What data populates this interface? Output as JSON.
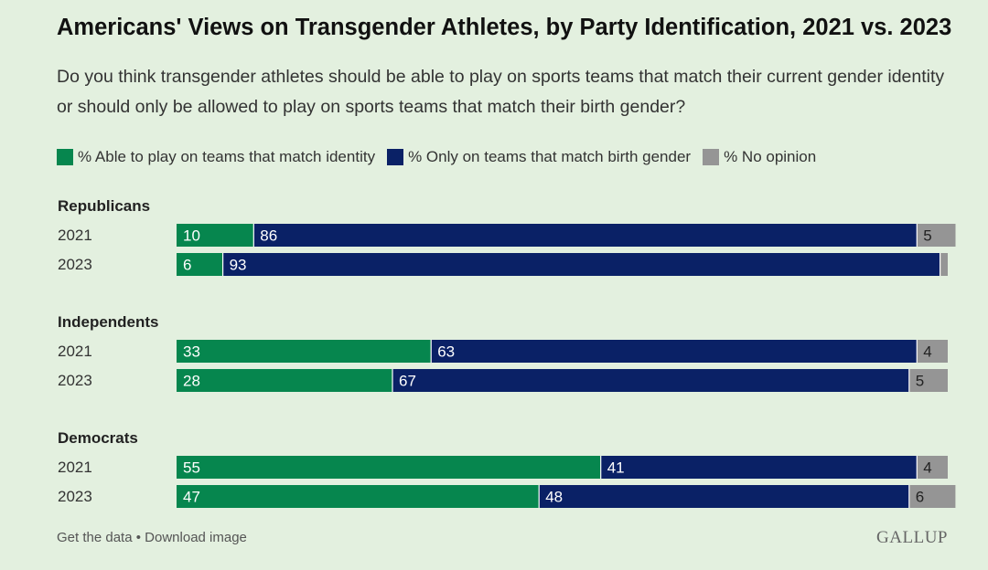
{
  "title": "Americans' Views on Transgender Athletes, by Party Identification, 2021 vs. 2023",
  "subtitle": "Do you think transgender athletes should be able to play on sports teams that match their current gender identity or should only be allowed to play on sports teams that match their birth gender?",
  "colors": {
    "identity": "#06864e",
    "birth": "#0a2166",
    "no_opinion": "#959595",
    "background": "#e3f0df"
  },
  "footer": {
    "get_data": "Get the data",
    "separator": "•",
    "download": "Download image"
  },
  "brand": "GALLUP",
  "chart_data": {
    "type": "bar",
    "stacked": true,
    "orientation": "horizontal",
    "legend": {
      "position": "top"
    },
    "xlim": [
      0,
      100
    ],
    "series": [
      {
        "key": "identity",
        "name": "% Able to play on teams that match identity"
      },
      {
        "key": "birth",
        "name": "% Only on teams that match birth gender"
      },
      {
        "key": "no_opinion",
        "name": "% No opinion"
      }
    ],
    "groups": [
      {
        "name": "Republicans",
        "rows": [
          {
            "year": "2021",
            "values": [
              10,
              86,
              5
            ]
          },
          {
            "year": "2023",
            "values": [
              6,
              93,
              1
            ]
          }
        ]
      },
      {
        "name": "Independents",
        "rows": [
          {
            "year": "2021",
            "values": [
              33,
              63,
              4
            ]
          },
          {
            "year": "2023",
            "values": [
              28,
              67,
              5
            ]
          }
        ]
      },
      {
        "name": "Democrats",
        "rows": [
          {
            "year": "2021",
            "values": [
              55,
              41,
              4
            ]
          },
          {
            "year": "2023",
            "values": [
              47,
              48,
              6
            ]
          }
        ]
      }
    ]
  }
}
